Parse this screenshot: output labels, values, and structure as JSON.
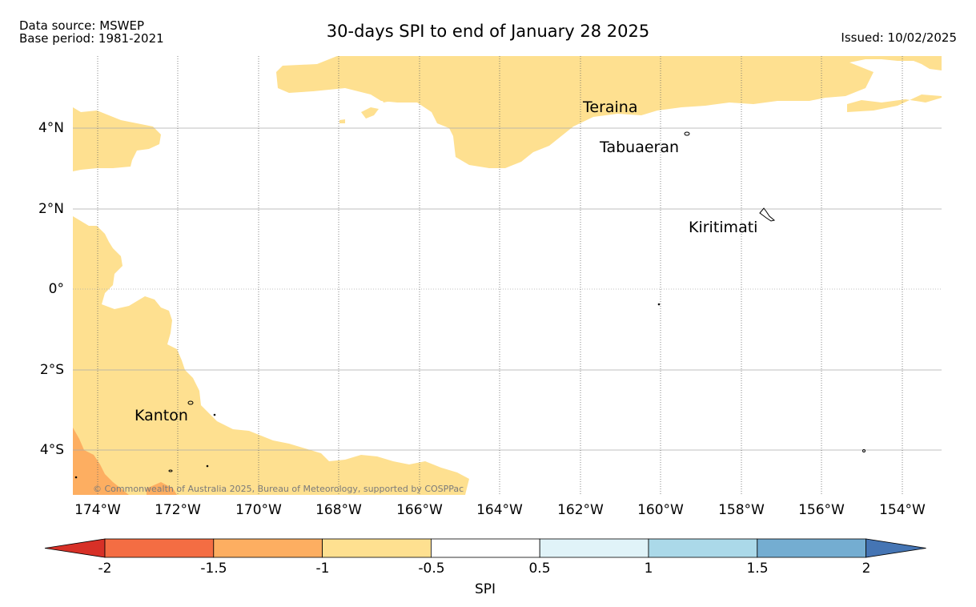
{
  "header": {
    "source_line1": "Data source: MSWEP",
    "source_line2": "Base period: 1981-2021",
    "title": "30-days SPI to end of January 28 2025",
    "issued": "Issued: 10/02/2025"
  },
  "map": {
    "lat_labels": [
      "4°N",
      "2°N",
      "0°",
      "2°S",
      "4°S"
    ],
    "lon_labels": [
      "174°W",
      "172°W",
      "170°W",
      "168°W",
      "166°W",
      "164°W",
      "162°W",
      "160°W",
      "158°W",
      "156°W",
      "154°W"
    ],
    "places": {
      "teraina": "Teraina",
      "tabuaeran": "Tabuaeran",
      "kiritimati": "Kiritimati",
      "kanton": "Kanton"
    },
    "copyright": "© Commonwealth of Australia 2025, Bureau of Meteorology, supported by COSPPac",
    "region_colors": {
      "dry_moderate": "#fee090",
      "dry_severe": "#fdae61"
    }
  },
  "colorbar": {
    "title": "SPI",
    "labels": [
      "-2",
      "-1.5",
      "-1",
      "-0.5",
      "0.5",
      "1",
      "1.5",
      "2"
    ],
    "colors": [
      "#d73027",
      "#f46d43",
      "#fdae61",
      "#fee090",
      "#ffffff",
      "#e0f3f8",
      "#abd9e9",
      "#74add1",
      "#4575b4"
    ]
  }
}
